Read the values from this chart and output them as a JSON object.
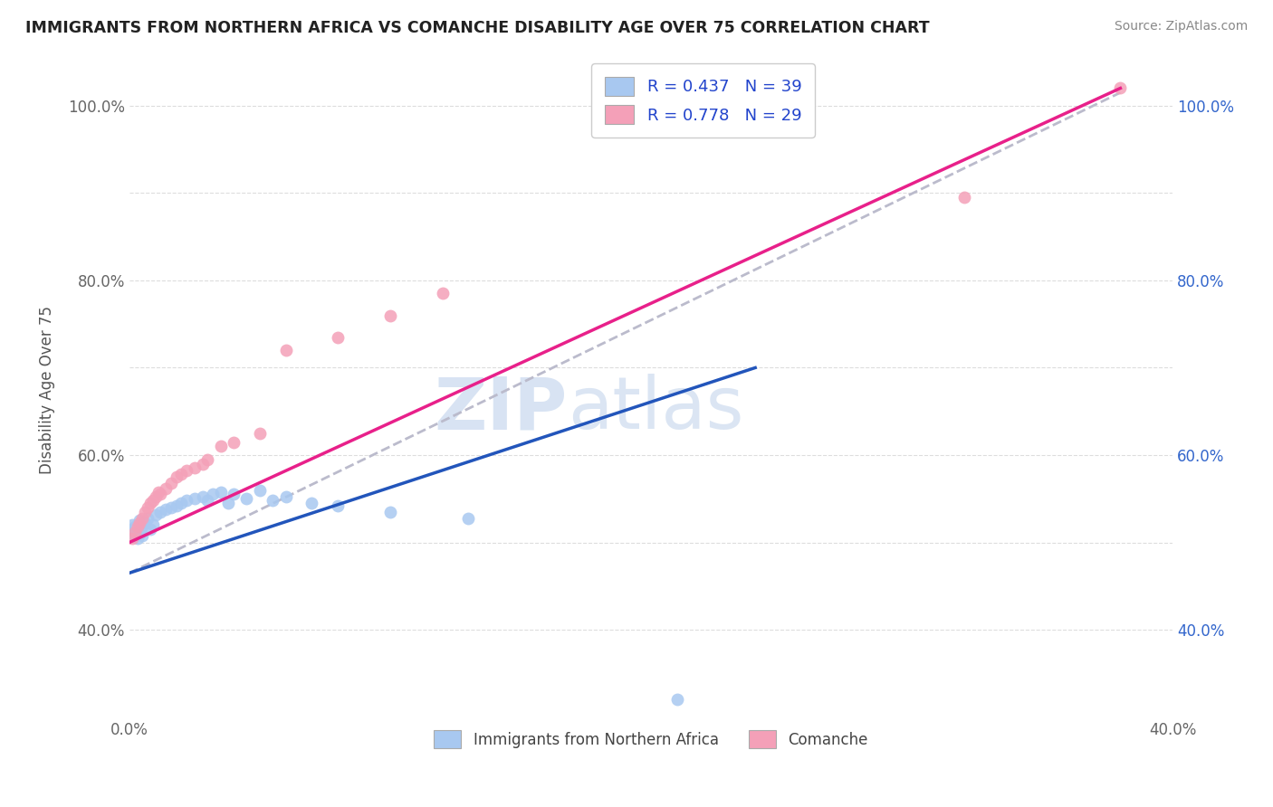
{
  "title": "IMMIGRANTS FROM NORTHERN AFRICA VS COMANCHE DISABILITY AGE OVER 75 CORRELATION CHART",
  "source": "Source: ZipAtlas.com",
  "ylabel": "Disability Age Over 75",
  "xlim": [
    0.0,
    0.4
  ],
  "ylim": [
    0.3,
    1.05
  ],
  "x_tick_pos": [
    0.0,
    0.1,
    0.2,
    0.3,
    0.4
  ],
  "x_tick_labels": [
    "0.0%",
    "",
    "",
    "",
    "40.0%"
  ],
  "y_tick_pos": [
    0.4,
    0.5,
    0.6,
    0.7,
    0.8,
    0.9,
    1.0
  ],
  "y_tick_labels_left": [
    "40.0%",
    "",
    "60.0%",
    "",
    "80.0%",
    "",
    "100.0%"
  ],
  "y_tick_labels_right": [
    "40.0%",
    "",
    "60.0%",
    "",
    "80.0%",
    "",
    "100.0%"
  ],
  "legend_label1": "Immigrants from Northern Africa",
  "legend_label2": "Comanche",
  "R1": 0.437,
  "N1": 39,
  "R2": 0.778,
  "N2": 29,
  "color1": "#A8C8F0",
  "color2": "#F4A0B8",
  "line_color1": "#2255BB",
  "line_color2": "#E8208A",
  "trendline_color": "#BBBBCC",
  "watermark_zip": "ZIP",
  "watermark_atlas": "atlas",
  "blue_scatter": [
    [
      0.001,
      0.51
    ],
    [
      0.001,
      0.515
    ],
    [
      0.001,
      0.52
    ],
    [
      0.002,
      0.508
    ],
    [
      0.002,
      0.512
    ],
    [
      0.002,
      0.518
    ],
    [
      0.003,
      0.505
    ],
    [
      0.003,
      0.515
    ],
    [
      0.004,
      0.51
    ],
    [
      0.004,
      0.525
    ],
    [
      0.005,
      0.508
    ],
    [
      0.005,
      0.518
    ],
    [
      0.006,
      0.522
    ],
    [
      0.007,
      0.528
    ],
    [
      0.008,
      0.515
    ],
    [
      0.009,
      0.52
    ],
    [
      0.01,
      0.532
    ],
    [
      0.012,
      0.535
    ],
    [
      0.014,
      0.538
    ],
    [
      0.016,
      0.54
    ],
    [
      0.018,
      0.542
    ],
    [
      0.02,
      0.545
    ],
    [
      0.022,
      0.548
    ],
    [
      0.025,
      0.55
    ],
    [
      0.028,
      0.552
    ],
    [
      0.03,
      0.548
    ],
    [
      0.032,
      0.555
    ],
    [
      0.035,
      0.558
    ],
    [
      0.038,
      0.545
    ],
    [
      0.04,
      0.555
    ],
    [
      0.045,
      0.55
    ],
    [
      0.05,
      0.56
    ],
    [
      0.055,
      0.548
    ],
    [
      0.06,
      0.552
    ],
    [
      0.07,
      0.545
    ],
    [
      0.08,
      0.542
    ],
    [
      0.1,
      0.535
    ],
    [
      0.13,
      0.528
    ],
    [
      0.21,
      0.32
    ]
  ],
  "pink_scatter": [
    [
      0.001,
      0.505
    ],
    [
      0.002,
      0.512
    ],
    [
      0.003,
      0.518
    ],
    [
      0.004,
      0.522
    ],
    [
      0.005,
      0.528
    ],
    [
      0.006,
      0.535
    ],
    [
      0.007,
      0.54
    ],
    [
      0.008,
      0.545
    ],
    [
      0.009,
      0.548
    ],
    [
      0.01,
      0.552
    ],
    [
      0.011,
      0.558
    ],
    [
      0.012,
      0.555
    ],
    [
      0.014,
      0.562
    ],
    [
      0.016,
      0.568
    ],
    [
      0.018,
      0.575
    ],
    [
      0.02,
      0.578
    ],
    [
      0.022,
      0.582
    ],
    [
      0.025,
      0.585
    ],
    [
      0.028,
      0.59
    ],
    [
      0.03,
      0.595
    ],
    [
      0.035,
      0.61
    ],
    [
      0.04,
      0.615
    ],
    [
      0.05,
      0.625
    ],
    [
      0.06,
      0.72
    ],
    [
      0.08,
      0.735
    ],
    [
      0.1,
      0.76
    ],
    [
      0.12,
      0.785
    ],
    [
      0.32,
      0.895
    ],
    [
      0.38,
      1.02
    ]
  ],
  "blue_line": [
    [
      0.0,
      0.465
    ],
    [
      0.24,
      0.7
    ]
  ],
  "pink_line": [
    [
      0.0,
      0.5
    ],
    [
      0.38,
      1.02
    ]
  ],
  "gray_line": [
    [
      0.0,
      0.465
    ],
    [
      0.38,
      1.015
    ]
  ],
  "figsize": [
    14.06,
    8.92
  ],
  "dpi": 100
}
